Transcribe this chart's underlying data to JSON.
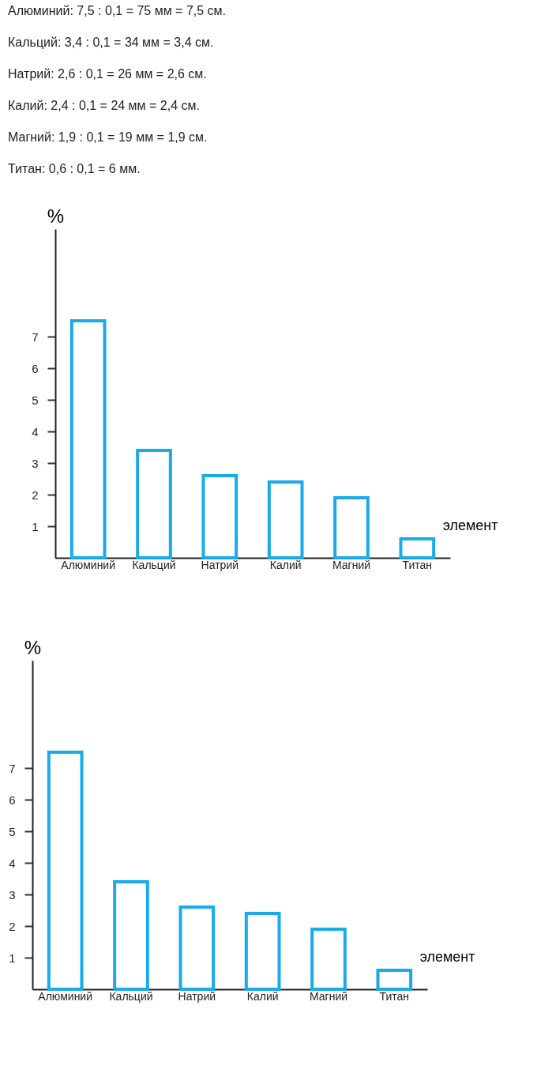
{
  "chart_data": [
    {
      "type": "bar",
      "annotations": [
        "Алюминий: 7,5 : 0,1 = 75 мм = 7,5 см.",
        "Кальций: 3,4 : 0,1 = 34 мм = 3,4 см.",
        "Натрий: 2,6 : 0,1 = 26 мм = 2,6 см.",
        "Калий: 2,4 : 0,1 = 24 мм = 2,4 см.",
        "Магний: 1,9 : 0,1 = 19 мм = 1,9 см.",
        "Титан: 0,6 : 0,1 = 6 мм."
      ],
      "xlabel": "элемент",
      "ylabel": "%",
      "categories": [
        "Алюминий",
        "Кальций",
        "Натрий",
        "Калий",
        "Магний",
        "Титан"
      ],
      "values": [
        7.5,
        3.4,
        2.6,
        2.4,
        1.9,
        0.6
      ],
      "color": "#1aaaea",
      "ylim": [
        0,
        10.4
      ],
      "yticks": [
        1,
        2,
        3,
        4,
        5,
        6,
        7
      ],
      "grid": false
    },
    {
      "type": "bar",
      "xlabel": "элемент",
      "ylabel": "%",
      "categories": [
        "Алюминий",
        "Кальций",
        "Натрий",
        "Калий",
        "Магний",
        "Титан"
      ],
      "values": [
        7.5,
        3.4,
        2.6,
        2.4,
        1.9,
        0.6
      ],
      "color": "#1aaaea",
      "ylim": [
        0,
        10.4
      ],
      "yticks": [
        1,
        2,
        3,
        4,
        5,
        6,
        7
      ],
      "grid": false
    }
  ]
}
